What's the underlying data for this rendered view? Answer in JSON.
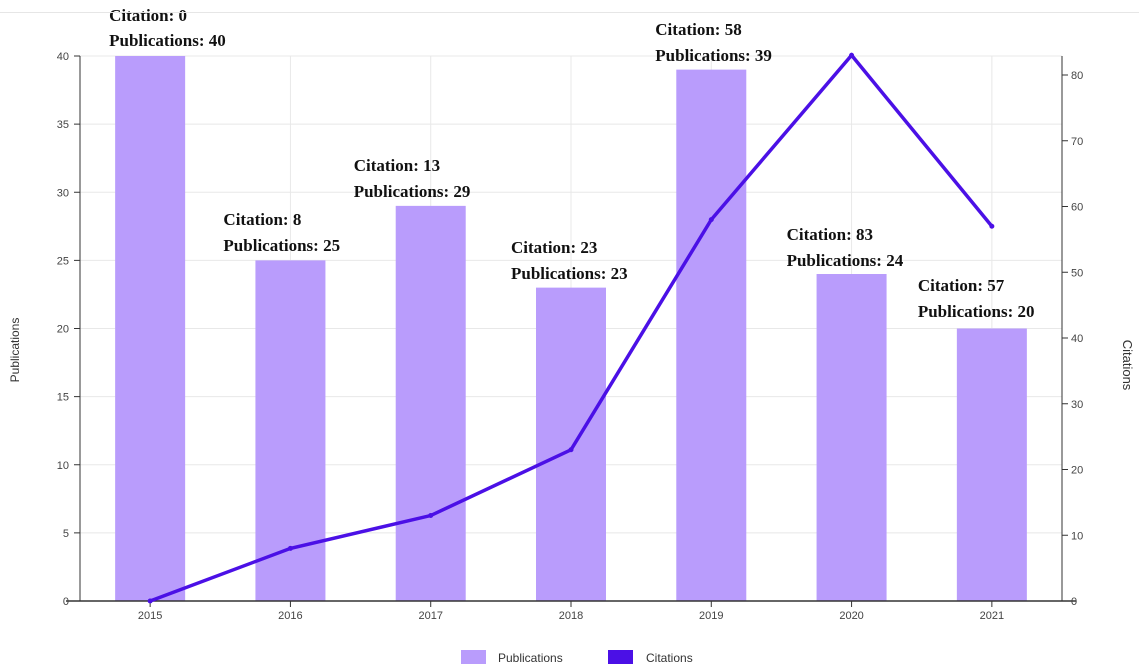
{
  "chart_data": {
    "type": "bar",
    "categories": [
      "2015",
      "2016",
      "2017",
      "2018",
      "2019",
      "2020",
      "2021"
    ],
    "series": [
      {
        "name": "Publications",
        "type": "bar",
        "axis": "left",
        "color": "#b99cfc",
        "values": [
          40,
          25,
          29,
          23,
          39,
          24,
          20
        ]
      },
      {
        "name": "Citations",
        "type": "line",
        "axis": "right",
        "color": "#4b10e6",
        "values": [
          0,
          8,
          13,
          23,
          58,
          83,
          57
        ]
      }
    ],
    "ylabel": "Publications",
    "y2label": "Citations",
    "ylim": [
      0,
      40
    ],
    "y2lim": [
      0,
      83
    ],
    "yticks": [
      0,
      5,
      10,
      15,
      20,
      25,
      30,
      35,
      40
    ],
    "y2ticks": [
      0,
      10,
      20,
      30,
      40,
      50,
      60,
      70,
      80
    ],
    "grid": true,
    "legend": "bottom-center",
    "data_labels": [
      {
        "citation": "Citation: 0",
        "publications": "Publications: 40"
      },
      {
        "citation": "Citation: 8",
        "publications": "Publications: 25"
      },
      {
        "citation": "Citation: 13",
        "publications": "Publications: 29"
      },
      {
        "citation": "Citation: 23",
        "publications": "Publications: 23"
      },
      {
        "citation": "Citation: 58",
        "publications": "Publications: 39"
      },
      {
        "citation": "Citation: 83",
        "publications": "Publications: 24"
      },
      {
        "citation": "Citation: 57",
        "publications": "Publications: 20"
      }
    ]
  }
}
